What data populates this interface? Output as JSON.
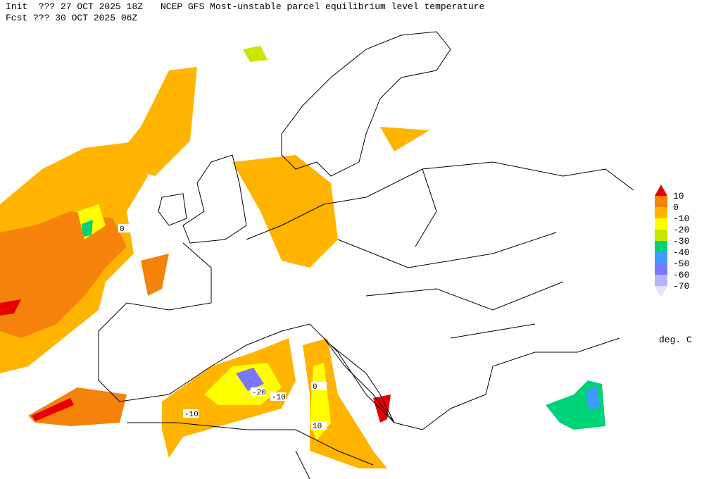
{
  "header": {
    "init": "Init  ??? 27 OCT 2025 18Z",
    "title": "NCEP GFS Most-unstable parcel equilibrium level temperature",
    "fcst": "Fcst ??? 30 OCT 2025 06Z"
  },
  "colorbar": {
    "colors": [
      "#e60000",
      "#f5820a",
      "#ffb400",
      "#ffff00",
      "#c8e600",
      "#00d278",
      "#3c9cff",
      "#7878ff",
      "#b4b4ff",
      "#e2e2ff"
    ],
    "labels": [
      10,
      0,
      -10,
      -20,
      -30,
      -40,
      -50,
      -60,
      -70
    ],
    "units": "deg. C"
  },
  "map": {
    "labels": [
      "0",
      "-20",
      "-10",
      "-10",
      "10",
      "0"
    ]
  }
}
